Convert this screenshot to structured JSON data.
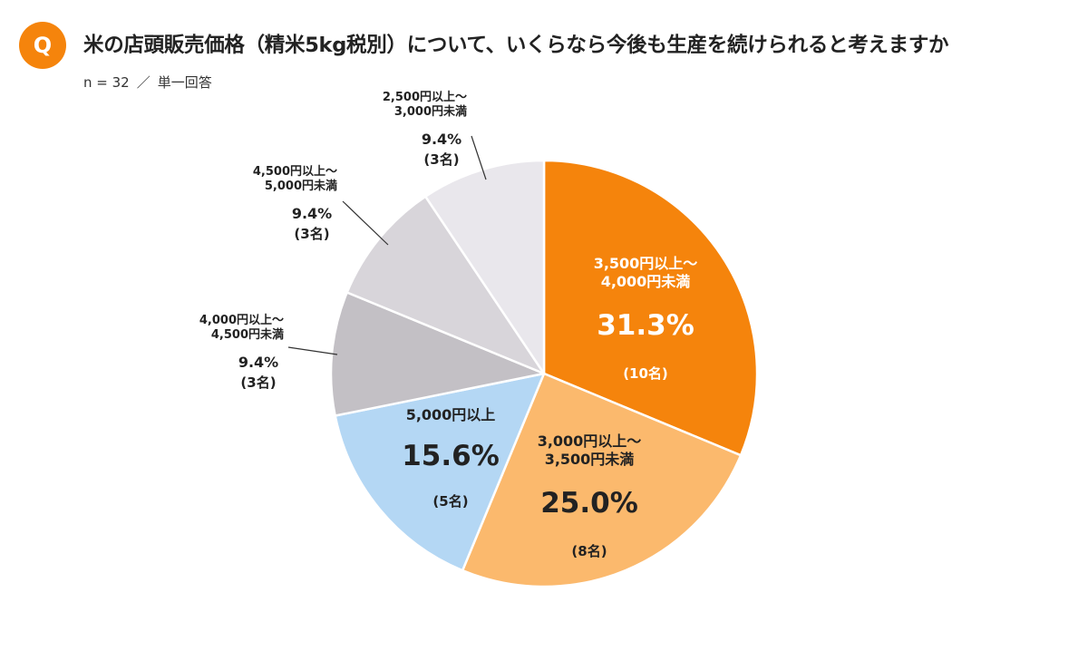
{
  "header": {
    "badge": "Q",
    "title": "米の店頭販売価格（精米5kg税別）について、いくらなら今後も生産を続けられると考えますか",
    "sample": "n = 32",
    "separator": "／",
    "answer_type": "単一回答"
  },
  "chart_data": {
    "type": "pie",
    "start": "12 o'clock",
    "direction": "clockwise",
    "slices": [
      {
        "label_line1": "3,500円以上～",
        "label_line2": "4,000円未満",
        "percent": 31.3,
        "percent_label": "31.3%",
        "count_label": "(10名)",
        "color": "#f5840c",
        "label_position": "inside"
      },
      {
        "label_line1": "3,000円以上～",
        "label_line2": "3,500円未満",
        "percent": 25.0,
        "percent_label": "25.0%",
        "count_label": "(8名)",
        "color": "#fbb96d",
        "label_position": "inside"
      },
      {
        "label_line1": "5,000円以上",
        "label_line2": "",
        "percent": 15.6,
        "percent_label": "15.6%",
        "count_label": "(5名)",
        "color": "#b4d7f4",
        "label_position": "inside"
      },
      {
        "label_line1": "4,000円以上～",
        "label_line2": "4,500円未満",
        "percent": 9.4,
        "percent_label": "9.4%",
        "count_label": "(3名)",
        "color": "#c3c0c5",
        "label_position": "outside"
      },
      {
        "label_line1": "4,500円以上～",
        "label_line2": "5,000円未満",
        "percent": 9.4,
        "percent_label": "9.4%",
        "count_label": "(3名)",
        "color": "#d8d5da",
        "label_position": "outside"
      },
      {
        "label_line1": "2,500円以上～",
        "label_line2": "3,000円未満",
        "percent": 9.4,
        "percent_label": "9.4%",
        "count_label": "(3名)",
        "color": "#e9e7ec",
        "label_position": "outside"
      }
    ]
  }
}
